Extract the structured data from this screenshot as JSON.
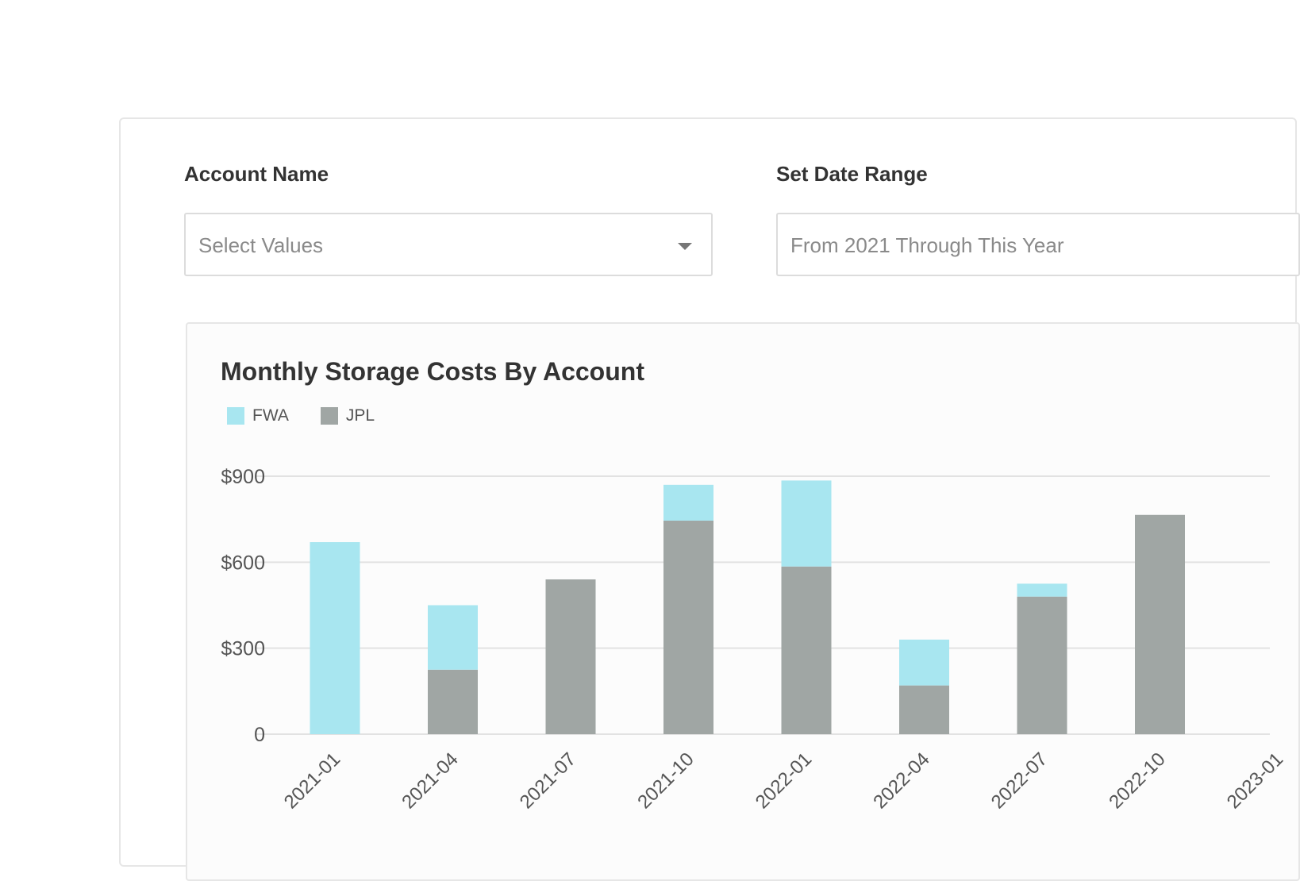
{
  "filters": {
    "account": {
      "label": "Account Name",
      "placeholder": "Select Values"
    },
    "date_range": {
      "label": "Set Date Range",
      "value": "From 2021 Through This Year"
    }
  },
  "colors": {
    "FWA": "#a8e6f0",
    "JPL": "#a0a6a4",
    "grid": "#e2e2e2"
  },
  "chart_data": {
    "type": "bar",
    "stacked": true,
    "title": "Monthly Storage Costs By Account",
    "categories": [
      "2021-01",
      "2021-04",
      "2021-07",
      "2021-10",
      "2022-01",
      "2022-04",
      "2022-07",
      "2022-10",
      "2023-01"
    ],
    "series": [
      {
        "name": "JPL",
        "values": [
          0,
          225,
          540,
          745,
          585,
          170,
          480,
          765,
          null
        ]
      },
      {
        "name": "FWA",
        "values": [
          670,
          225,
          0,
          125,
          300,
          160,
          45,
          0,
          null
        ]
      }
    ],
    "y_ticks": [
      {
        "value": 0,
        "label": "0"
      },
      {
        "value": 300,
        "label": "$300"
      },
      {
        "value": 600,
        "label": "$600"
      },
      {
        "value": 900,
        "label": "$900"
      }
    ],
    "ylim": [
      0,
      900
    ],
    "grid": true,
    "legend": "top-left"
  }
}
